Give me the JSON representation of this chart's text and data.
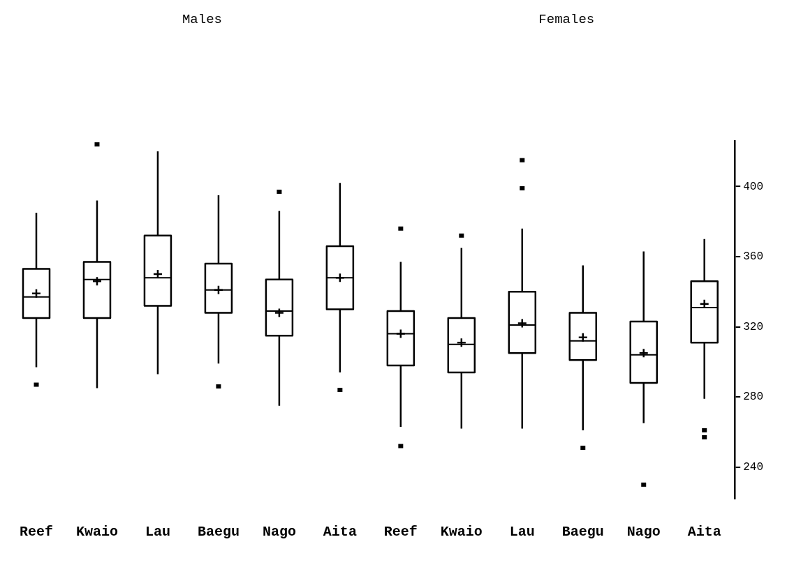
{
  "chart_data": {
    "type": "box",
    "annotations": [
      "Males",
      "Females"
    ],
    "categories": [
      "Reef",
      "Kwaio",
      "Lau",
      "Baegu",
      "Nago",
      "Aita",
      "Reef",
      "Kwaio",
      "Lau",
      "Baegu",
      "Nago",
      "Aita"
    ],
    "boxes": [
      {
        "low": 297,
        "q1": 325,
        "median": 337,
        "q3": 353,
        "high": 385,
        "mean": 339,
        "outliers": [
          287
        ]
      },
      {
        "low": 285,
        "q1": 325,
        "median": 347,
        "q3": 357,
        "high": 392,
        "mean": 346,
        "outliers": [
          424
        ]
      },
      {
        "low": 293,
        "q1": 332,
        "median": 348,
        "q3": 372,
        "high": 420,
        "mean": 350
      },
      {
        "low": 299,
        "q1": 328,
        "median": 341,
        "q3": 356,
        "high": 395,
        "mean": 341,
        "outliers": [
          286
        ]
      },
      {
        "low": 275,
        "q1": 315,
        "median": 329,
        "q3": 347,
        "high": 386,
        "mean": 328,
        "outliers": [
          397
        ]
      },
      {
        "low": 294,
        "q1": 330,
        "median": 348,
        "q3": 366,
        "high": 402,
        "mean": 348,
        "outliers": [
          284
        ]
      },
      {
        "low": 263,
        "q1": 298,
        "median": 316,
        "q3": 329,
        "high": 357,
        "mean": 316,
        "outliers": [
          376,
          252
        ]
      },
      {
        "low": 262,
        "q1": 294,
        "median": 310,
        "q3": 325,
        "high": 365,
        "mean": 311,
        "outliers": [
          372
        ]
      },
      {
        "low": 262,
        "q1": 305,
        "median": 321,
        "q3": 340,
        "high": 376,
        "mean": 322,
        "outliers": [
          415,
          399
        ]
      },
      {
        "low": 261,
        "q1": 301,
        "median": 312,
        "q3": 328,
        "high": 355,
        "mean": 314,
        "outliers": [
          251
        ]
      },
      {
        "low": 265,
        "q1": 288,
        "median": 304,
        "q3": 323,
        "high": 363,
        "mean": 305,
        "outliers": [
          230
        ]
      },
      {
        "low": 279,
        "q1": 311,
        "median": 331,
        "q3": 346,
        "high": 370,
        "mean": 333,
        "outliers": [
          261,
          257
        ]
      }
    ],
    "ylim": [
      222,
      426
    ],
    "yticks": [
      240,
      280,
      320,
      360,
      400
    ]
  }
}
